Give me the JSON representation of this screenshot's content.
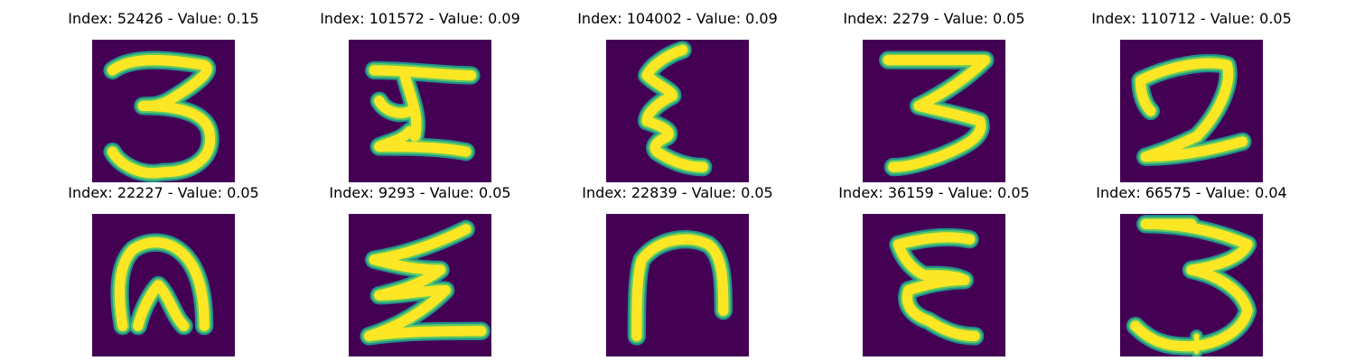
{
  "colors": {
    "background": "#440154",
    "stroke_edge": "#21918c",
    "stroke_mid": "#5ec962",
    "stroke_core": "#fde725"
  },
  "images": [
    {
      "title": "Index: 52426 - Value: 0.15",
      "glyph": "open-three"
    },
    {
      "title": "Index: 101572 - Value: 0.09",
      "glyph": "i-shape"
    },
    {
      "title": "Index: 104002 - Value: 0.09",
      "glyph": "narrow-epsilon"
    },
    {
      "title": "Index: 2279 - Value: 0.05",
      "glyph": "angular-three"
    },
    {
      "title": "Index: 110712 - Value: 0.05",
      "glyph": "thick-two"
    },
    {
      "title": "Index: 22227 - Value: 0.05",
      "glyph": "thick-n"
    },
    {
      "title": "Index: 9293 - Value: 0.05",
      "glyph": "zigzag"
    },
    {
      "title": "Index: 22839 - Value: 0.05",
      "glyph": "arch"
    },
    {
      "title": "Index: 36159 - Value: 0.05",
      "glyph": "epsilon"
    },
    {
      "title": "Index: 66575 - Value: 0.04",
      "glyph": "wide-three"
    }
  ]
}
